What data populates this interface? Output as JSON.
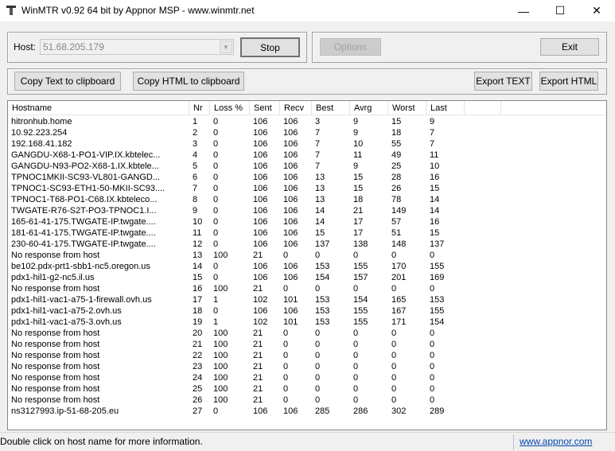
{
  "window": {
    "title": "WinMTR v0.92 64 bit by Appnor MSP - www.winmtr.net",
    "minimize": "—",
    "maximize": "☐",
    "close": "✕"
  },
  "host": {
    "label": "Host:",
    "value": "51.68.205.179"
  },
  "buttons": {
    "stop": "Stop",
    "options": "Options",
    "exit": "Exit",
    "copy_text": "Copy Text to clipboard",
    "copy_html": "Copy HTML to clipboard",
    "export_text": "Export TEXT",
    "export_html": "Export HTML"
  },
  "table": {
    "columns": [
      "Hostname",
      "Nr",
      "Loss %",
      "Sent",
      "Recv",
      "Best",
      "Avrg",
      "Worst",
      "Last"
    ],
    "rows": [
      [
        "hitronhub.home",
        "1",
        "0",
        "106",
        "106",
        "3",
        "9",
        "15",
        "9"
      ],
      [
        "10.92.223.254",
        "2",
        "0",
        "106",
        "106",
        "7",
        "9",
        "18",
        "7"
      ],
      [
        "192.168.41.182",
        "3",
        "0",
        "106",
        "106",
        "7",
        "10",
        "55",
        "7"
      ],
      [
        "GANGDU-X68-1-PO1-VIP.IX.kbtelec...",
        "4",
        "0",
        "106",
        "106",
        "7",
        "11",
        "49",
        "11"
      ],
      [
        "GANGDU-N93-PO2-X68-1.IX.kbtele...",
        "5",
        "0",
        "106",
        "106",
        "7",
        "9",
        "25",
        "10"
      ],
      [
        "TPNOC1MKII-SC93-VL801-GANGD...",
        "6",
        "0",
        "106",
        "106",
        "13",
        "15",
        "28",
        "16"
      ],
      [
        "TPNOC1-SC93-ETH1-50-MKII-SC93....",
        "7",
        "0",
        "106",
        "106",
        "13",
        "15",
        "26",
        "15"
      ],
      [
        "TPNOC1-T68-PO1-C68.IX.kbteleco...",
        "8",
        "0",
        "106",
        "106",
        "13",
        "18",
        "78",
        "14"
      ],
      [
        "TWGATE-R76-S2T-PO3-TPNOC1.I...",
        "9",
        "0",
        "106",
        "106",
        "14",
        "21",
        "149",
        "14"
      ],
      [
        "165-61-41-175.TWGATE-IP.twgate....",
        "10",
        "0",
        "106",
        "106",
        "14",
        "17",
        "57",
        "16"
      ],
      [
        "181-61-41-175.TWGATE-IP.twgate....",
        "11",
        "0",
        "106",
        "106",
        "15",
        "17",
        "51",
        "15"
      ],
      [
        "230-60-41-175.TWGATE-IP.twgate....",
        "12",
        "0",
        "106",
        "106",
        "137",
        "138",
        "148",
        "137"
      ],
      [
        "No response from host",
        "13",
        "100",
        "21",
        "0",
        "0",
        "0",
        "0",
        "0"
      ],
      [
        "be102.pdx-prt1-sbb1-nc5.oregon.us",
        "14",
        "0",
        "106",
        "106",
        "153",
        "155",
        "170",
        "155"
      ],
      [
        "pdx1-hil1-g2-nc5.il.us",
        "15",
        "0",
        "106",
        "106",
        "154",
        "157",
        "201",
        "169"
      ],
      [
        "No response from host",
        "16",
        "100",
        "21",
        "0",
        "0",
        "0",
        "0",
        "0"
      ],
      [
        "pdx1-hil1-vac1-a75-1-firewall.ovh.us",
        "17",
        "1",
        "102",
        "101",
        "153",
        "154",
        "165",
        "153"
      ],
      [
        "pdx1-hil1-vac1-a75-2.ovh.us",
        "18",
        "0",
        "106",
        "106",
        "153",
        "155",
        "167",
        "155"
      ],
      [
        "pdx1-hil1-vac1-a75-3.ovh.us",
        "19",
        "1",
        "102",
        "101",
        "153",
        "155",
        "171",
        "154"
      ],
      [
        "No response from host",
        "20",
        "100",
        "21",
        "0",
        "0",
        "0",
        "0",
        "0"
      ],
      [
        "No response from host",
        "21",
        "100",
        "21",
        "0",
        "0",
        "0",
        "0",
        "0"
      ],
      [
        "No response from host",
        "22",
        "100",
        "21",
        "0",
        "0",
        "0",
        "0",
        "0"
      ],
      [
        "No response from host",
        "23",
        "100",
        "21",
        "0",
        "0",
        "0",
        "0",
        "0"
      ],
      [
        "No response from host",
        "24",
        "100",
        "21",
        "0",
        "0",
        "0",
        "0",
        "0"
      ],
      [
        "No response from host",
        "25",
        "100",
        "21",
        "0",
        "0",
        "0",
        "0",
        "0"
      ],
      [
        "No response from host",
        "26",
        "100",
        "21",
        "0",
        "0",
        "0",
        "0",
        "0"
      ],
      [
        "ns3127993.ip-51-68-205.eu",
        "27",
        "0",
        "106",
        "106",
        "285",
        "286",
        "302",
        "289"
      ]
    ]
  },
  "status": {
    "text": "Double click on host name for more information.",
    "link": "www.appnor.com"
  }
}
